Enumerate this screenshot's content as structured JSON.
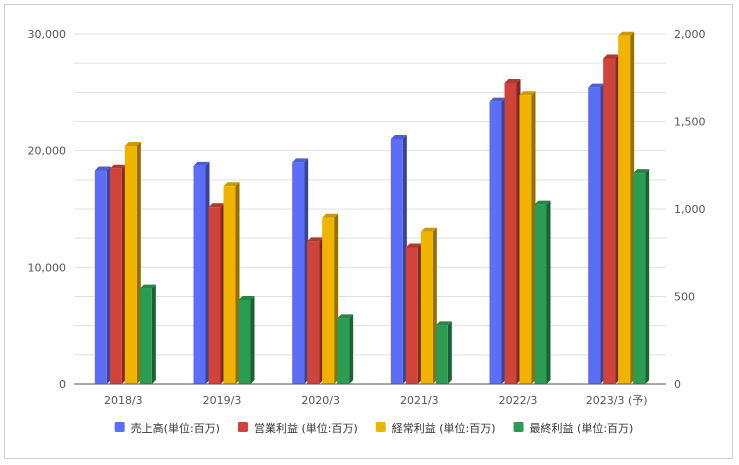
{
  "chart_data": {
    "type": "bar",
    "categories": [
      "2018/3",
      "2019/3",
      "2020/3",
      "2021/3",
      "2022/3",
      "2023/3 (予)"
    ],
    "series": [
      {
        "name": "売上高(単位:百万)",
        "color": "#5b6ef5",
        "axis": "left",
        "values": [
          18300,
          18700,
          19000,
          21000,
          24200,
          25400
        ]
      },
      {
        "name": "営業利益 (単位:百万)",
        "color": "#d0433a",
        "axis": "right",
        "values": [
          1230,
          1010,
          815,
          780,
          1720,
          1860
        ]
      },
      {
        "name": "経常利益 (単位:百万)",
        "color": "#f0b400",
        "axis": "right",
        "values": [
          1360,
          1130,
          950,
          870,
          1650,
          1990
        ]
      },
      {
        "name": "最終利益 (単位:百万)",
        "color": "#2a9d52",
        "axis": "right",
        "values": [
          545,
          480,
          375,
          335,
          1025,
          1205
        ]
      }
    ],
    "y_left": {
      "lim": [
        0,
        30000
      ],
      "ticks": [
        "0",
        "10,000",
        "20,000",
        "30,000"
      ],
      "tick_values": [
        0,
        10000,
        20000,
        30000
      ]
    },
    "y_right": {
      "lim": [
        0,
        2000
      ],
      "ticks": [
        "0",
        "500",
        "1,000",
        "1,500",
        "2,000"
      ],
      "tick_values": [
        0,
        500,
        1000,
        1500,
        2000
      ]
    },
    "grid": true,
    "legend": "bottom",
    "title": "",
    "xlabel": "",
    "ylabel": ""
  }
}
